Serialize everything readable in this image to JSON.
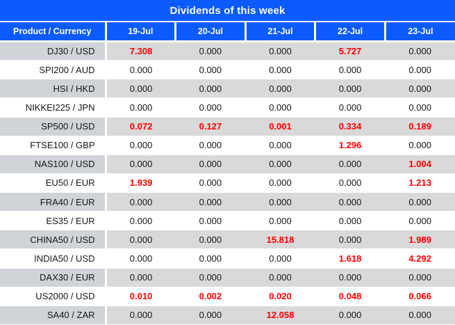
{
  "title": "Dividends of this week",
  "table": {
    "columns": [
      "Product / Currency",
      "19-Jul",
      "20-Jul",
      "21-Jul",
      "22-Jul",
      "23-Jul"
    ],
    "rows": [
      {
        "product": "DJ30 / USD",
        "cells": [
          {
            "v": "7.308",
            "highlight": true
          },
          {
            "v": "0.000",
            "highlight": false
          },
          {
            "v": "0.000",
            "highlight": false
          },
          {
            "v": "5.727",
            "highlight": true
          },
          {
            "v": "0.000",
            "highlight": false
          }
        ]
      },
      {
        "product": "SPI200 / AUD",
        "cells": [
          {
            "v": "0.000",
            "highlight": false
          },
          {
            "v": "0.000",
            "highlight": false
          },
          {
            "v": "0.000",
            "highlight": false
          },
          {
            "v": "0.000",
            "highlight": false
          },
          {
            "v": "0.000",
            "highlight": false
          }
        ]
      },
      {
        "product": "HSI / HKD",
        "cells": [
          {
            "v": "0.000",
            "highlight": false
          },
          {
            "v": "0.000",
            "highlight": false
          },
          {
            "v": "0.000",
            "highlight": false
          },
          {
            "v": "0.000",
            "highlight": false
          },
          {
            "v": "0.000",
            "highlight": false
          }
        ]
      },
      {
        "product": "NIKKEI225 / JPN",
        "cells": [
          {
            "v": "0.000",
            "highlight": false
          },
          {
            "v": "0.000",
            "highlight": false
          },
          {
            "v": "0.000",
            "highlight": false
          },
          {
            "v": "0.000",
            "highlight": false
          },
          {
            "v": "0.000",
            "highlight": false
          }
        ]
      },
      {
        "product": "SP500 / USD",
        "cells": [
          {
            "v": "0.072",
            "highlight": true
          },
          {
            "v": "0.127",
            "highlight": true
          },
          {
            "v": "0.001",
            "highlight": true
          },
          {
            "v": "0.334",
            "highlight": true
          },
          {
            "v": "0.189",
            "highlight": true
          }
        ]
      },
      {
        "product": "FTSE100 / GBP",
        "cells": [
          {
            "v": "0.000",
            "highlight": false
          },
          {
            "v": "0.000",
            "highlight": false
          },
          {
            "v": "0.000",
            "highlight": false
          },
          {
            "v": "1.296",
            "highlight": true
          },
          {
            "v": "0.000",
            "highlight": false
          }
        ]
      },
      {
        "product": "NAS100 / USD",
        "cells": [
          {
            "v": "0.000",
            "highlight": false
          },
          {
            "v": "0.000",
            "highlight": false
          },
          {
            "v": "0.000",
            "highlight": false
          },
          {
            "v": "0.000",
            "highlight": false
          },
          {
            "v": "1.004",
            "highlight": true
          }
        ]
      },
      {
        "product": "EU50 / EUR",
        "cells": [
          {
            "v": "1.939",
            "highlight": true
          },
          {
            "v": "0.000",
            "highlight": false
          },
          {
            "v": "0.000",
            "highlight": false
          },
          {
            "v": "0.000",
            "highlight": false
          },
          {
            "v": "1.213",
            "highlight": true
          }
        ]
      },
      {
        "product": "FRA40 / EUR",
        "cells": [
          {
            "v": "0.000",
            "highlight": false
          },
          {
            "v": "0.000",
            "highlight": false
          },
          {
            "v": "0.000",
            "highlight": false
          },
          {
            "v": "0.000",
            "highlight": false
          },
          {
            "v": "0.000",
            "highlight": false
          }
        ]
      },
      {
        "product": "ES35 / EUR",
        "cells": [
          {
            "v": "0.000",
            "highlight": false
          },
          {
            "v": "0.000",
            "highlight": false
          },
          {
            "v": "0.000",
            "highlight": false
          },
          {
            "v": "0.000",
            "highlight": false
          },
          {
            "v": "0.000",
            "highlight": false
          }
        ]
      },
      {
        "product": "CHINA50 / USD",
        "cells": [
          {
            "v": "0.000",
            "highlight": false
          },
          {
            "v": "0.000",
            "highlight": false
          },
          {
            "v": "15.818",
            "highlight": true
          },
          {
            "v": "0.000",
            "highlight": false
          },
          {
            "v": "1.989",
            "highlight": true
          }
        ]
      },
      {
        "product": "INDIA50 / USD",
        "cells": [
          {
            "v": "0.000",
            "highlight": false
          },
          {
            "v": "0.000",
            "highlight": false
          },
          {
            "v": "0.000",
            "highlight": false
          },
          {
            "v": "1.618",
            "highlight": true
          },
          {
            "v": "4.292",
            "highlight": true
          }
        ]
      },
      {
        "product": "DAX30 / EUR",
        "cells": [
          {
            "v": "0.000",
            "highlight": false
          },
          {
            "v": "0.000",
            "highlight": false
          },
          {
            "v": "0.000",
            "highlight": false
          },
          {
            "v": "0.000",
            "highlight": false
          },
          {
            "v": "0.000",
            "highlight": false
          }
        ]
      },
      {
        "product": "US2000 / USD",
        "cells": [
          {
            "v": "0.010",
            "highlight": true
          },
          {
            "v": "0.002",
            "highlight": true
          },
          {
            "v": "0.020",
            "highlight": true
          },
          {
            "v": "0.048",
            "highlight": true
          },
          {
            "v": "0.066",
            "highlight": true
          }
        ]
      },
      {
        "product": "SA40 / ZAR",
        "cells": [
          {
            "v": "0.000",
            "highlight": false
          },
          {
            "v": "0.000",
            "highlight": false
          },
          {
            "v": "12.058",
            "highlight": true
          },
          {
            "v": "0.000",
            "highlight": false
          },
          {
            "v": "0.000",
            "highlight": false
          }
        ]
      }
    ]
  },
  "colors": {
    "header_blue": "#0b5bfe",
    "row_gray": "#d9d9d9",
    "product_col_gray": "#d0d3d7",
    "row_white": "#ffffff",
    "highlight_red": "#fe0000",
    "header_text": "#ffffff",
    "value_text": "#141414"
  }
}
